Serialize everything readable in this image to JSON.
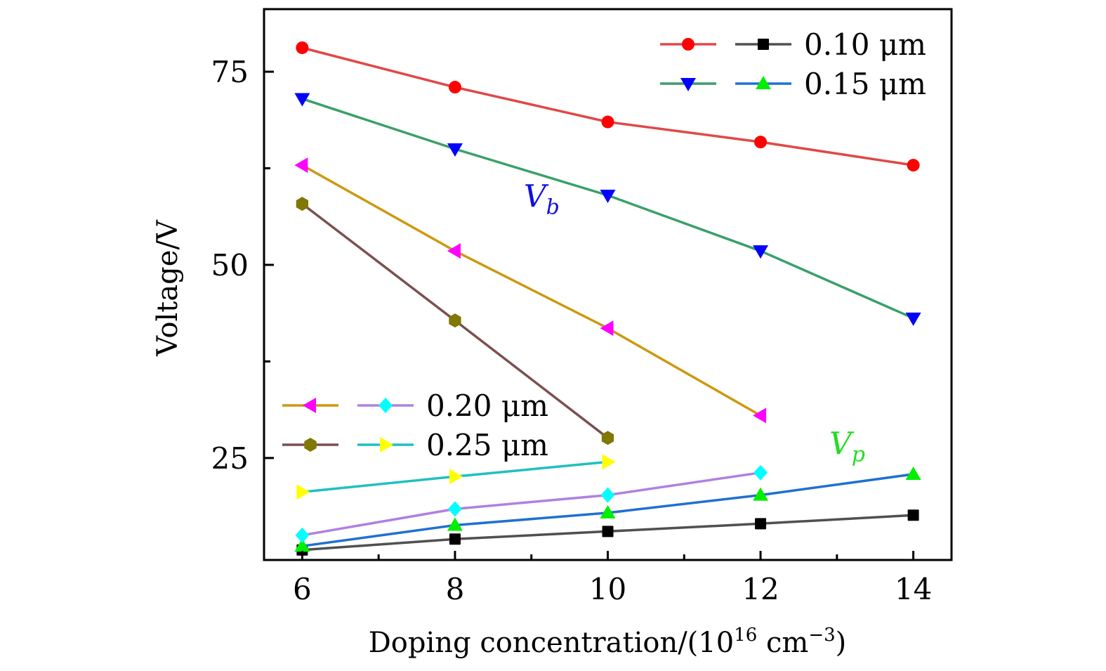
{
  "chart_data": {
    "type": "line",
    "title": "",
    "xlabel": "Doping concentration/(10^16 cm^-3)",
    "xlabel_parts": {
      "prefix": "Doping concentration/(10",
      "exp1": "16",
      "mid": " cm",
      "exp2": "−3",
      "suffix": ")"
    },
    "ylabel": "Voltage/V",
    "xlim": [
      5.5,
      14.5
    ],
    "ylim": [
      11.8,
      83.1
    ],
    "x_ticks": [
      6,
      8,
      10,
      12,
      14
    ],
    "x_minor_ticks": [
      7,
      9,
      11,
      13
    ],
    "y_ticks": [
      25,
      50,
      75
    ],
    "y_minor_ticks": [
      37.5,
      62.5
    ],
    "grid": false,
    "annotations": [
      {
        "text": "V",
        "sub": "b",
        "color": "#1010e0",
        "x": 8.9,
        "y": 57.5
      },
      {
        "text": "V",
        "sub": "p",
        "color": "#22dd22",
        "x": 12.9,
        "y": 25.5
      }
    ],
    "legends": [
      {
        "placement": "top-right",
        "entries": [
          {
            "label": "0.10 μm",
            "series": [
              "Vb 0.10 μm",
              "Vp 0.10 μm"
            ]
          },
          {
            "label": "0.15 μm",
            "series": [
              "Vb 0.15 μm",
              "Vp 0.15 μm"
            ]
          }
        ]
      },
      {
        "placement": "center-left",
        "entries": [
          {
            "label": "0.20 μm",
            "series": [
              "Vb 0.20 μm",
              "Vp 0.20 μm"
            ]
          },
          {
            "label": "0.25 μm",
            "series": [
              "Vb 0.25 μm",
              "Vp 0.25 μm"
            ]
          }
        ]
      }
    ],
    "series": [
      {
        "name": "Vb 0.10 μm",
        "line_color": "#e04848",
        "marker": "circle",
        "marker_color": "#ff0000",
        "x": [
          6,
          8,
          10,
          12,
          14
        ],
        "values": [
          78.1,
          73.0,
          68.5,
          65.9,
          62.9
        ]
      },
      {
        "name": "Vb 0.15 μm",
        "line_color": "#3aa06a",
        "marker": "triangle-down",
        "marker_color": "#0000ff",
        "x": [
          6,
          8,
          10,
          12,
          14
        ],
        "values": [
          71.5,
          65.0,
          59.0,
          51.8,
          43.1
        ]
      },
      {
        "name": "Vb 0.20 μm",
        "line_color": "#cc9910",
        "marker": "triangle-left",
        "marker_color": "#ff00ff",
        "x": [
          6,
          8,
          10,
          12
        ],
        "values": [
          62.9,
          51.8,
          41.8,
          30.5
        ]
      },
      {
        "name": "Vb 0.25 μm",
        "line_color": "#7a5050",
        "marker": "hexagon",
        "marker_color": "#807800",
        "x": [
          6,
          8,
          10
        ],
        "values": [
          57.9,
          42.8,
          27.6
        ]
      },
      {
        "name": "Vp 0.10 μm",
        "line_color": "#505050",
        "marker": "square",
        "marker_color": "#000000",
        "x": [
          6,
          8,
          10,
          12,
          14
        ],
        "values": [
          13.1,
          14.5,
          15.5,
          16.5,
          17.6
        ]
      },
      {
        "name": "Vp 0.15 μm",
        "line_color": "#2070d0",
        "marker": "triangle-up",
        "marker_color": "#00ee00",
        "x": [
          6,
          8,
          10,
          12,
          14
        ],
        "values": [
          13.6,
          16.3,
          17.9,
          20.2,
          22.9
        ]
      },
      {
        "name": "Vp 0.20 μm",
        "line_color": "#b080e0",
        "marker": "diamond",
        "marker_color": "#00ffff",
        "x": [
          6,
          8,
          10,
          12
        ],
        "values": [
          15.0,
          18.4,
          20.2,
          23.1
        ]
      },
      {
        "name": "Vp 0.25 μm",
        "line_color": "#20c0c0",
        "marker": "triangle-right",
        "marker_color": "#ffff00",
        "x": [
          6,
          8,
          10
        ],
        "values": [
          20.6,
          22.6,
          24.5
        ]
      }
    ]
  }
}
